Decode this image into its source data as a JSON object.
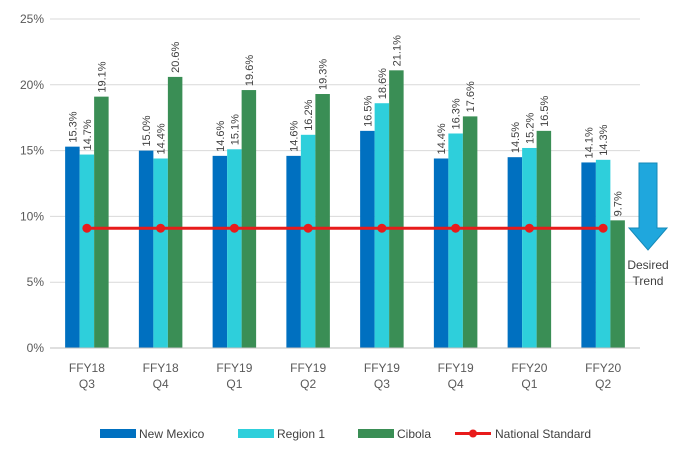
{
  "chart_data": {
    "type": "bar",
    "categories": [
      [
        "FFY18",
        "Q3"
      ],
      [
        "FFY18",
        "Q4"
      ],
      [
        "FFY19",
        "Q1"
      ],
      [
        "FFY19",
        "Q2"
      ],
      [
        "FFY19",
        "Q3"
      ],
      [
        "FFY19",
        "Q4"
      ],
      [
        "FFY20",
        "Q1"
      ],
      [
        "FFY20",
        "Q2"
      ]
    ],
    "series": [
      {
        "name": "New Mexico",
        "color": "#0070C0",
        "values": [
          15.3,
          15.0,
          14.6,
          14.6,
          16.5,
          14.4,
          14.5,
          14.1
        ],
        "labels": [
          "15.3%",
          "15.0%",
          "14.6%",
          "14.6%",
          "16.5%",
          "14.4%",
          "14.5%",
          "14.1%"
        ]
      },
      {
        "name": "Region 1",
        "color": "#2ECFDB",
        "values": [
          14.7,
          14.4,
          15.1,
          16.2,
          18.6,
          16.3,
          15.2,
          14.3
        ],
        "labels": [
          "14.7%",
          "14.4%",
          "15.1%",
          "16.2%",
          "18.6%",
          "16.3%",
          "15.2%",
          "14.3%"
        ]
      },
      {
        "name": "Cibola",
        "color": "#3A8E55",
        "values": [
          19.1,
          20.6,
          19.6,
          19.3,
          21.1,
          17.6,
          16.5,
          9.7
        ],
        "labels": [
          "19.1%",
          "20.6%",
          "19.6%",
          "19.3%",
          "21.1%",
          "17.6%",
          "16.5%",
          "9.7%"
        ]
      }
    ],
    "line": {
      "name": "National Standard",
      "color": "#E81B1B",
      "values": [
        9.1,
        9.1,
        9.1,
        9.1,
        9.1,
        9.1,
        9.1,
        9.1
      ]
    },
    "ylim": [
      0,
      25
    ],
    "yticks": [
      0,
      5,
      10,
      15,
      20,
      25
    ],
    "ytick_labels": [
      "0%",
      "5%",
      "10%",
      "15%",
      "20%",
      "25%"
    ],
    "grid": true,
    "legend_position": "bottom",
    "annotation": {
      "text": [
        "Desired",
        "Trend"
      ],
      "arrow_color": "#1FA7DD",
      "direction": "down"
    }
  }
}
